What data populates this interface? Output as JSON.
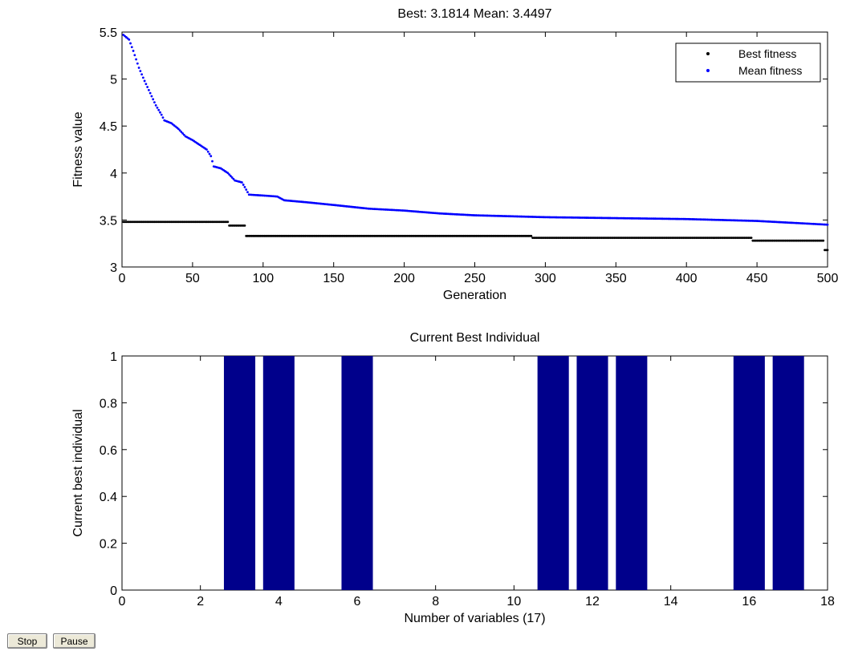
{
  "chart_data": [
    {
      "type": "scatter",
      "title": "Best: 3.1814 Mean: 3.4497",
      "xlabel": "Generation",
      "ylabel": "Fitness value",
      "xlim": [
        0,
        500
      ],
      "ylim": [
        3,
        5.5
      ],
      "xticks": [
        0,
        50,
        100,
        150,
        200,
        250,
        300,
        350,
        400,
        450,
        500
      ],
      "yticks": [
        3,
        3.5,
        4,
        4.5,
        5,
        5.5
      ],
      "legend_position": "top-right",
      "grid": false,
      "series": [
        {
          "name": "Best fitness",
          "color": "#000000",
          "x": [
            1,
            75,
            76,
            87,
            88,
            290,
            291,
            446,
            447,
            497,
            498,
            500
          ],
          "y": [
            3.48,
            3.48,
            3.44,
            3.44,
            3.33,
            3.33,
            3.31,
            3.31,
            3.28,
            3.28,
            3.18,
            3.18
          ]
        },
        {
          "name": "Mean fitness",
          "color": "#0000ff",
          "x": [
            1,
            5,
            8,
            12,
            16,
            20,
            24,
            28,
            30,
            35,
            40,
            45,
            50,
            55,
            60,
            63,
            65,
            70,
            75,
            80,
            85,
            87,
            90,
            100,
            110,
            115,
            130,
            150,
            175,
            200,
            225,
            250,
            300,
            350,
            400,
            450,
            500
          ],
          "y": [
            5.47,
            5.42,
            5.3,
            5.12,
            4.98,
            4.85,
            4.72,
            4.62,
            4.56,
            4.53,
            4.47,
            4.39,
            4.35,
            4.3,
            4.25,
            4.18,
            4.07,
            4.05,
            4.0,
            3.92,
            3.9,
            3.85,
            3.77,
            3.76,
            3.75,
            3.71,
            3.69,
            3.66,
            3.62,
            3.6,
            3.57,
            3.55,
            3.53,
            3.52,
            3.51,
            3.49,
            3.45
          ]
        }
      ]
    },
    {
      "type": "bar",
      "title": "Current Best Individual",
      "xlabel": "Number of variables (17)",
      "ylabel": "Current best individual",
      "xlim": [
        0,
        18
      ],
      "ylim": [
        0,
        1
      ],
      "xticks": [
        0,
        2,
        4,
        6,
        8,
        10,
        12,
        14,
        16,
        18
      ],
      "yticks": [
        0,
        0.2,
        0.4,
        0.6,
        0.8,
        1
      ],
      "bar_color": "#00008b",
      "categories": [
        1,
        2,
        3,
        4,
        5,
        6,
        7,
        8,
        9,
        10,
        11,
        12,
        13,
        14,
        15,
        16,
        17
      ],
      "values": [
        0,
        0,
        1,
        1,
        0,
        1,
        0,
        0,
        0,
        0,
        1,
        1,
        1,
        0,
        0,
        1,
        1
      ]
    }
  ],
  "controls": {
    "stop_label": "Stop",
    "pause_label": "Pause"
  }
}
